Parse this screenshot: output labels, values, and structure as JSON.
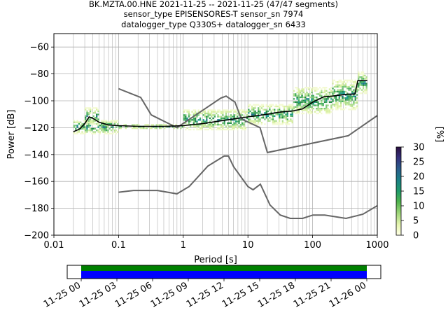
{
  "chart_data": {
    "type": "heatmap",
    "title_lines": [
      "BK.MZTA.00.HNE   2021-11-25 -- 2021-11-25  (47/47 segments)",
      "sensor_type EPISENSORES-T sensor_sn 7974",
      "datalogger_type Q330S+ datalogger_sn 6433"
    ],
    "xlabel": "Period [s]",
    "ylabel": "Power [dB]",
    "xscale": "log",
    "xlim": [
      0.01,
      1000
    ],
    "ylim": [
      -200,
      -50
    ],
    "grid": true,
    "x_ticks": [
      {
        "value": 0.01,
        "label": "0.01"
      },
      {
        "value": 0.1,
        "label": "0.1"
      },
      {
        "value": 1,
        "label": "1"
      },
      {
        "value": 10,
        "label": "10"
      },
      {
        "value": 100,
        "label": "100"
      },
      {
        "value": 1000,
        "label": "1000"
      }
    ],
    "y_ticks": [
      {
        "value": -60,
        "label": "−60"
      },
      {
        "value": -80,
        "label": "−80"
      },
      {
        "value": -100,
        "label": "−100"
      },
      {
        "value": -120,
        "label": "−120"
      },
      {
        "value": -140,
        "label": "−140"
      },
      {
        "value": -160,
        "label": "−160"
      },
      {
        "value": -180,
        "label": "−180"
      },
      {
        "value": -200,
        "label": "−200"
      }
    ],
    "colorbar": {
      "label": "[%]",
      "range": [
        0,
        30
      ],
      "ticks": [
        "0",
        "5",
        "10",
        "15",
        "20",
        "25",
        "30"
      ]
    },
    "mode_curve": [
      [
        0.02,
        -123
      ],
      [
        0.025,
        -121
      ],
      [
        0.03,
        -117
      ],
      [
        0.035,
        -112
      ],
      [
        0.04,
        -113
      ],
      [
        0.05,
        -116
      ],
      [
        0.07,
        -118
      ],
      [
        0.1,
        -118.5
      ],
      [
        0.2,
        -119
      ],
      [
        0.5,
        -119
      ],
      [
        1,
        -118.5
      ],
      [
        2,
        -117
      ],
      [
        5,
        -114
      ],
      [
        10,
        -112
      ],
      [
        20,
        -110
      ],
      [
        30,
        -108.5
      ],
      [
        50,
        -107.5
      ],
      [
        70,
        -106
      ],
      [
        100,
        -101
      ],
      [
        150,
        -97
      ],
      [
        200,
        -96.5
      ],
      [
        350,
        -95
      ],
      [
        450,
        -95
      ],
      [
        500,
        -85
      ],
      [
        700,
        -85
      ]
    ],
    "density_bands": [
      {
        "x": [
          0.02,
          0.1
        ],
        "y": [
          -125,
          -114
        ]
      },
      {
        "x": [
          0.03,
          0.05
        ],
        "y": [
          -118,
          -105
        ]
      },
      {
        "x": [
          0.1,
          1
        ],
        "y": [
          -121,
          -117
        ]
      },
      {
        "x": [
          1,
          10
        ],
        "y": [
          -122,
          -107
        ]
      },
      {
        "x": [
          10,
          50
        ],
        "y": [
          -118,
          -103
        ]
      },
      {
        "x": [
          50,
          200
        ],
        "y": [
          -110,
          -90
        ]
      },
      {
        "x": [
          200,
          500
        ],
        "y": [
          -107,
          -84
        ]
      },
      {
        "x": [
          500,
          700
        ],
        "y": [
          -95,
          -78
        ]
      }
    ],
    "nhnm": [
      [
        0.1,
        -91
      ],
      [
        0.22,
        -97.5
      ],
      [
        0.32,
        -110.5
      ],
      [
        0.8,
        -120
      ],
      [
        3.8,
        -98
      ],
      [
        4.6,
        -96.5
      ],
      [
        6.3,
        -101
      ],
      [
        7.9,
        -113.5
      ],
      [
        15.4,
        -120
      ],
      [
        20,
        -138.5
      ],
      [
        354.8,
        -126
      ],
      [
        1000,
        -111
      ]
    ],
    "nlnm": [
      [
        0.1,
        -168
      ],
      [
        0.17,
        -166.7
      ],
      [
        0.4,
        -166.7
      ],
      [
        0.8,
        -169.2
      ],
      [
        1.24,
        -163.7
      ],
      [
        2.4,
        -148.6
      ],
      [
        4.3,
        -141.1
      ],
      [
        5,
        -141.1
      ],
      [
        6,
        -149
      ],
      [
        10,
        -163.8
      ],
      [
        12,
        -166.2
      ],
      [
        15.6,
        -162.1
      ],
      [
        21.9,
        -177.5
      ],
      [
        31.6,
        -185
      ],
      [
        45,
        -187.5
      ],
      [
        70,
        -187.5
      ],
      [
        101,
        -185
      ],
      [
        154,
        -185
      ],
      [
        328,
        -187.5
      ],
      [
        600,
        -184.4
      ],
      [
        1000,
        -178
      ]
    ]
  },
  "timeline": {
    "tick_labels": [
      "11-25 00",
      "11-25 03",
      "11-25 06",
      "11-25 09",
      "11-25 12",
      "11-25 15",
      "11-25 18",
      "11-25 21",
      "11-26 00"
    ],
    "coverage_color": "#0000ff",
    "processed_color": "#008000"
  },
  "colors": {
    "mode_line": "#000000",
    "noise_models": "#666666",
    "grid": "#b0b0b0"
  }
}
